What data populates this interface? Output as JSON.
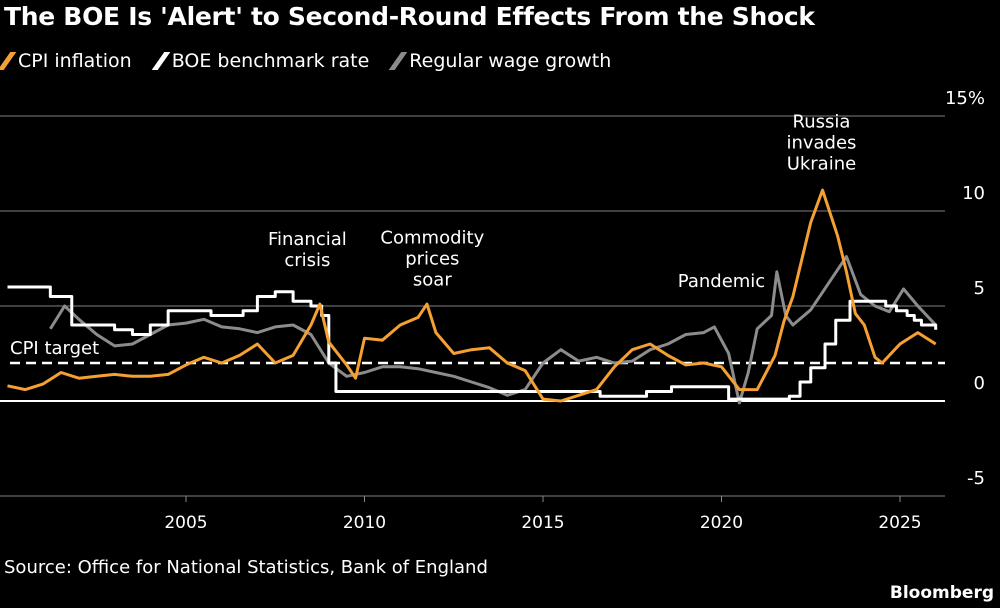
{
  "title": "The BOE Is 'Alert' to Second-Round Effects From the Shock",
  "source": "Source: Office for National Statistics, Bank of England",
  "brand": "Bloomberg",
  "chart_data": {
    "type": "line",
    "ylim": [
      -5,
      15
    ],
    "yticks": [
      {
        "v": 15,
        "label": "15%"
      },
      {
        "v": 10,
        "label": "10"
      },
      {
        "v": 5,
        "label": "5"
      },
      {
        "v": 0,
        "label": "0"
      },
      {
        "v": -5,
        "label": "-5"
      }
    ],
    "xlim": [
      2000,
      2026.3
    ],
    "xticks": [
      {
        "v": 2005,
        "label": "2005"
      },
      {
        "v": 2010,
        "label": "2010"
      },
      {
        "v": 2015,
        "label": "2015"
      },
      {
        "v": 2020,
        "label": "2020"
      },
      {
        "v": 2025,
        "label": "2025"
      }
    ],
    "grid": true,
    "legend": "top-left",
    "reference_line": {
      "value": 2,
      "label": "CPI target"
    },
    "annotations": [
      {
        "label": [
          "Financial",
          "crisis"
        ],
        "x": 2008.4,
        "y": 8.2
      },
      {
        "label": [
          "Commodity",
          "prices",
          "soar"
        ],
        "x": 2011.9,
        "y": 8.3
      },
      {
        "label": [
          "Pandemic"
        ],
        "x": 2020.0,
        "y": 6.0
      },
      {
        "label": [
          "Russia",
          "invades",
          "Ukraine"
        ],
        "x": 2022.8,
        "y": 14.4
      }
    ],
    "series": [
      {
        "name": "CPI inflation",
        "color": "#f5a032",
        "step": false,
        "x": [
          2000,
          2000.5,
          2001,
          2001.5,
          2002,
          2002.5,
          2003,
          2003.5,
          2004,
          2004.5,
          2005,
          2005.5,
          2006,
          2006.5,
          2007,
          2007.5,
          2008,
          2008.5,
          2008.75,
          2009,
          2009.5,
          2009.75,
          2010,
          2010.5,
          2011,
          2011.5,
          2011.75,
          2012,
          2012.5,
          2013,
          2013.5,
          2014,
          2014.5,
          2015,
          2015.5,
          2016,
          2016.5,
          2017,
          2017.5,
          2018,
          2018.5,
          2019,
          2019.5,
          2020,
          2020.5,
          2021,
          2021.5,
          2021.75,
          2022,
          2022.5,
          2022.83,
          2023.25,
          2023.5,
          2023.75,
          2024,
          2024.3,
          2024.5,
          2025,
          2025.5,
          2026
        ],
        "y": [
          0.8,
          0.6,
          0.9,
          1.5,
          1.2,
          1.3,
          1.4,
          1.3,
          1.3,
          1.4,
          1.9,
          2.3,
          2.0,
          2.4,
          3.0,
          2.0,
          2.4,
          4.0,
          5.1,
          3.1,
          1.9,
          1.2,
          3.3,
          3.2,
          4.0,
          4.4,
          5.1,
          3.6,
          2.5,
          2.7,
          2.8,
          2.0,
          1.6,
          0.1,
          0.0,
          0.3,
          0.6,
          1.8,
          2.7,
          3.0,
          2.4,
          1.9,
          2.0,
          1.8,
          0.6,
          0.6,
          2.4,
          4.2,
          5.5,
          9.4,
          11.1,
          8.7,
          6.8,
          4.6,
          4.0,
          2.3,
          2.0,
          3.0,
          3.6,
          3.0
        ]
      },
      {
        "name": "BOE benchmark rate",
        "color": "#ffffff",
        "step": true,
        "x": [
          2000,
          2001.2,
          2001.8,
          2003,
          2003.5,
          2004,
          2004.5,
          2005.7,
          2006.6,
          2007,
          2007.5,
          2008,
          2008.5,
          2008.8,
          2009,
          2009.2,
          2016.6,
          2017.9,
          2018.6,
          2020.2,
          2021.9,
          2022.2,
          2022.5,
          2022.9,
          2023.2,
          2023.6,
          2024.6,
          2024.9,
          2025.2,
          2025.4,
          2025.6,
          2026
        ],
        "y": [
          6.0,
          5.5,
          4.0,
          3.75,
          3.5,
          4.0,
          4.75,
          4.5,
          4.75,
          5.5,
          5.75,
          5.25,
          5.0,
          4.5,
          2.0,
          0.5,
          0.25,
          0.5,
          0.75,
          0.1,
          0.25,
          1.0,
          1.75,
          3.0,
          4.25,
          5.25,
          5.0,
          4.75,
          4.5,
          4.25,
          4.0,
          3.75
        ]
      },
      {
        "name": "Regular wage growth",
        "color": "#8c8c8c",
        "step": false,
        "x": [
          2001.2,
          2001.6,
          2002,
          2002.5,
          2003,
          2003.5,
          2004,
          2004.5,
          2005,
          2005.5,
          2006,
          2006.5,
          2007,
          2007.5,
          2008,
          2008.5,
          2009,
          2009.5,
          2010,
          2010.5,
          2011,
          2011.5,
          2012,
          2012.5,
          2013,
          2013.5,
          2014,
          2014.5,
          2015,
          2015.5,
          2016,
          2016.5,
          2017,
          2017.5,
          2018,
          2018.5,
          2019,
          2019.5,
          2019.8,
          2020.2,
          2020.5,
          2020.75,
          2021,
          2021.4,
          2021.55,
          2021.8,
          2022,
          2022.5,
          2023,
          2023.5,
          2023.9,
          2024.3,
          2024.7,
          2025.1,
          2025.5,
          2026
        ],
        "y": [
          3.8,
          5.0,
          4.3,
          3.5,
          2.9,
          3.0,
          3.5,
          4.0,
          4.1,
          4.3,
          3.9,
          3.8,
          3.6,
          3.9,
          4.0,
          3.5,
          2.0,
          1.3,
          1.5,
          1.8,
          1.8,
          1.7,
          1.5,
          1.3,
          1.0,
          0.7,
          0.3,
          0.6,
          2.0,
          2.7,
          2.1,
          2.3,
          2.0,
          2.1,
          2.7,
          3.0,
          3.5,
          3.6,
          3.9,
          2.5,
          -0.1,
          1.5,
          3.8,
          4.5,
          6.8,
          4.5,
          4.0,
          4.8,
          6.2,
          7.6,
          5.6,
          5.0,
          4.7,
          5.9,
          5.0,
          4.0
        ]
      }
    ]
  }
}
